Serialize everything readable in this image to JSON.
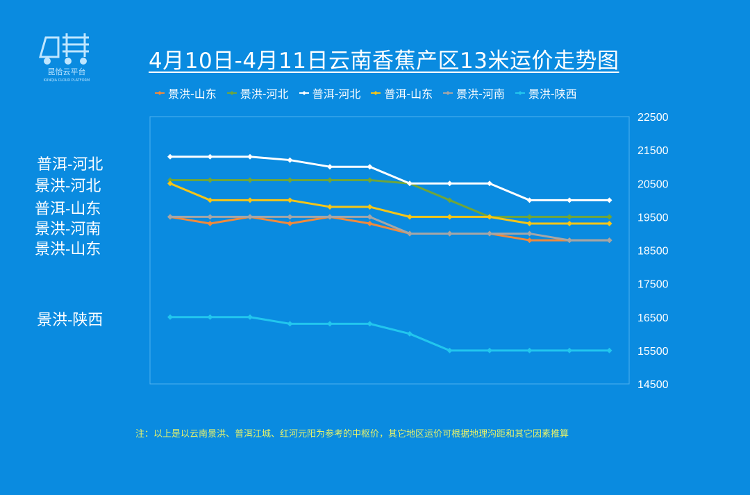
{
  "logo": {
    "name": "logo-icon",
    "caption": "昆恰云平台",
    "subcaption": "KUNQIA CLOUD PLATFORM"
  },
  "title": "4月10日-4月11日云南香蕉产区13米运价走势图",
  "note": "注：以上是以云南景洪、普洱江城、红河元阳为参考的中枢价，其它地区运价可根据地理沟距和其它因素推算",
  "side_labels": [
    "普洱-河北",
    "景洪-河北",
    "普洱-山东",
    "景洪-河南",
    "景洪-山东",
    "景洪-陕西"
  ],
  "colors": {
    "background": "#0a8be0",
    "景洪-山东": "#f08a3c",
    "景洪-河北": "#6fa53b",
    "普洱-河北": "#ffffff",
    "普洱-山东": "#f5c518",
    "景洪-河南": "#a6a6a6",
    "景洪-陕西": "#22c6ee"
  },
  "chart_data": {
    "type": "line",
    "title": "4月10日-4月11日云南香蕉产区13米运价走势图",
    "ylim": [
      14500,
      22500
    ],
    "yticks": [
      22500,
      21500,
      20500,
      19500,
      18500,
      17500,
      16500,
      15500,
      14500
    ],
    "point_count": 12,
    "grid": false,
    "legend": "top",
    "series": [
      {
        "name": "景洪-山东",
        "values": [
          19500,
          19300,
          19500,
          19300,
          19500,
          19300,
          19000,
          19000,
          19000,
          18800,
          18800,
          18800
        ]
      },
      {
        "name": "景洪-河北",
        "values": [
          20600,
          20600,
          20600,
          20600,
          20600,
          20600,
          20500,
          20000,
          19500,
          19500,
          19500,
          19500
        ]
      },
      {
        "name": "普洱-河北",
        "values": [
          21300,
          21300,
          21300,
          21200,
          21000,
          21000,
          20500,
          20500,
          20500,
          20000,
          20000,
          20000
        ]
      },
      {
        "name": "普洱-山东",
        "values": [
          20500,
          20000,
          20000,
          20000,
          19800,
          19800,
          19500,
          19500,
          19500,
          19300,
          19300,
          19300
        ]
      },
      {
        "name": "景洪-河南",
        "values": [
          19500,
          19500,
          19500,
          19500,
          19500,
          19500,
          19000,
          19000,
          19000,
          19000,
          18800,
          18800
        ]
      },
      {
        "name": "景洪-陕西",
        "values": [
          16500,
          16500,
          16500,
          16300,
          16300,
          16300,
          16000,
          15500,
          15500,
          15500,
          15500,
          15500
        ]
      }
    ]
  }
}
